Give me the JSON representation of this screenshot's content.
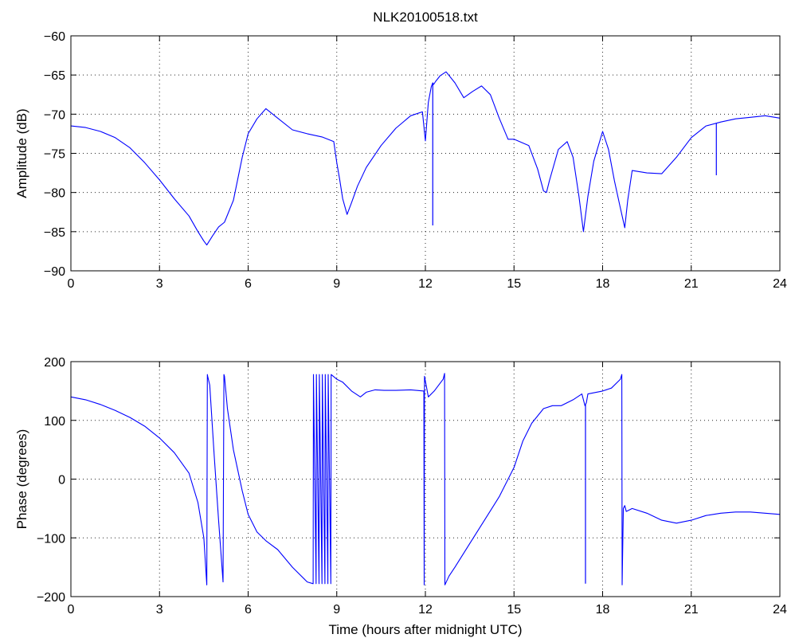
{
  "figure_title": "NLK20100518.txt",
  "colors": {
    "series": "#0000ff",
    "axes": "#000000",
    "background": "#ffffff"
  },
  "chart_data": [
    {
      "type": "line",
      "title": "NLK20100518.txt",
      "xlabel": "",
      "ylabel": "Amplitude (dB)",
      "xlim": [
        0,
        24
      ],
      "ylim": [
        -90,
        -60
      ],
      "xticks": [
        0,
        3,
        6,
        9,
        12,
        15,
        18,
        21,
        24
      ],
      "yticks": [
        -90,
        -85,
        -80,
        -75,
        -70,
        -65,
        -60
      ],
      "xtick_labels": [
        "0",
        "3",
        "6",
        "9",
        "12",
        "15",
        "18",
        "21",
        "24"
      ],
      "ytick_labels": [
        "−90",
        "−85",
        "−80",
        "−75",
        "−70",
        "−65",
        "−60"
      ],
      "grid": true,
      "series": [
        {
          "x": [
            0,
            0.5,
            1,
            1.5,
            2,
            2.5,
            3,
            3.5,
            4,
            4.3,
            4.5,
            4.6,
            4.8,
            5,
            5.2,
            5.5,
            5.8,
            6,
            6.3,
            6.6,
            7,
            7.5,
            8,
            8.5,
            8.9,
            9,
            9.1,
            9.2,
            9.35,
            9.5,
            9.7,
            10,
            10.5,
            11,
            11.5,
            11.9,
            12.0,
            12.1,
            12.2,
            12.25,
            12.28,
            12.35,
            12.5,
            12.7,
            13,
            13.3,
            13.6,
            13.9,
            14.2,
            14.5,
            14.8,
            15,
            15.5,
            15.8,
            16,
            16.1,
            16.2,
            16.5,
            16.8,
            17,
            17.2,
            17.35,
            17.5,
            17.7,
            18,
            18.2,
            18.4,
            18.6,
            18.75,
            18.85,
            19,
            19.5,
            20,
            20.5,
            21,
            21.5,
            22,
            22.5,
            23,
            23.5,
            24
          ],
          "y": [
            -71.5,
            -71.7,
            -72.2,
            -73,
            -74.3,
            -76.2,
            -78.4,
            -80.8,
            -83,
            -85,
            -86.2,
            -86.7,
            -85.5,
            -84.4,
            -83.8,
            -81,
            -75.5,
            -72.5,
            -70.6,
            -69.3,
            -70.5,
            -72,
            -72.5,
            -72.9,
            -73.5,
            -76.2,
            -78.4,
            -80.8,
            -82.8,
            -81.3,
            -79.2,
            -76.8,
            -74,
            -71.8,
            -70.2,
            -69.7,
            -73.4,
            -68.5,
            -66.5,
            -66,
            -66.2,
            -65.8,
            -65.1,
            -64.6,
            -66,
            -67.9,
            -67.1,
            -66.4,
            -67.5,
            -70.5,
            -73.2,
            -73.2,
            -74,
            -77,
            -79.8,
            -80,
            -78.5,
            -74.5,
            -73.5,
            -75.5,
            -80.5,
            -85,
            -80.5,
            -76,
            -72.2,
            -74.5,
            -78.5,
            -82,
            -84.5,
            -81,
            -77.2,
            -77.5,
            -77.6,
            -75.5,
            -73,
            -71.5,
            -71,
            -70.6,
            -70.4,
            -70.2,
            -70.5
          ],
          "spikes": [
            {
              "x": 12.25,
              "y": -84.2
            },
            {
              "x": 21.85,
              "y": -77.8
            }
          ]
        }
      ]
    },
    {
      "type": "line",
      "title": "",
      "xlabel": "Time (hours after midnight UTC)",
      "ylabel": "Phase (degrees)",
      "xlim": [
        0,
        24
      ],
      "ylim": [
        -200,
        200
      ],
      "xticks": [
        0,
        3,
        6,
        9,
        12,
        15,
        18,
        21,
        24
      ],
      "yticks": [
        -200,
        -100,
        0,
        100,
        200
      ],
      "xtick_labels": [
        "0",
        "3",
        "6",
        "9",
        "12",
        "15",
        "18",
        "21",
        "24"
      ],
      "ytick_labels": [
        "−200",
        "−100",
        "0",
        "100",
        "200"
      ],
      "grid": true,
      "series": [
        {
          "x": [
            0,
            0.5,
            1,
            1.5,
            2,
            2.5,
            3,
            3.5,
            4,
            4.3,
            4.5,
            4.6,
            4.62,
            4.63,
            4.7,
            4.85,
            5.0,
            5.15,
            5.18,
            5.2,
            5.3,
            5.5,
            5.8,
            6,
            6.3,
            6.6,
            7,
            7.5,
            8,
            8.2,
            8.21,
            8.3,
            8.31,
            8.4,
            8.41,
            8.5,
            8.51,
            8.6,
            8.61,
            8.7,
            8.71,
            8.8,
            8.81,
            9,
            9.2,
            9.5,
            9.8,
            10,
            10.3,
            10.6,
            11,
            11.5,
            11.95,
            11.96,
            11.97,
            12.1,
            12.3,
            12.6,
            12.65,
            12.66,
            12.8,
            13,
            13.5,
            14,
            14.5,
            15,
            15.3,
            15.6,
            16,
            16.3,
            16.6,
            17,
            17.3,
            17.4,
            17.45,
            17.5,
            18,
            18.3,
            18.6,
            18.65,
            18.66,
            18.7,
            18.75,
            18.8,
            19,
            19.5,
            20,
            20.5,
            21,
            21.5,
            22,
            22.5,
            23,
            23.5,
            24
          ],
          "y": [
            140,
            135,
            127,
            117,
            105,
            90,
            70,
            45,
            10,
            -40,
            -100,
            -180,
            178,
            175,
            160,
            40,
            -70,
            -175,
            178,
            175,
            120,
            50,
            -20,
            -60,
            -90,
            -105,
            -120,
            -150,
            -175,
            -178,
            178,
            -178,
            178,
            -178,
            178,
            -178,
            178,
            -178,
            178,
            -178,
            178,
            -178,
            178,
            170,
            165,
            150,
            140,
            148,
            152,
            151,
            151,
            152,
            150,
            -180,
            175,
            140,
            150,
            170,
            180,
            -180,
            -165,
            -150,
            -110,
            -70,
            -30,
            20,
            65,
            95,
            120,
            125,
            125,
            135,
            145,
            125,
            130,
            145,
            150,
            155,
            170,
            178,
            -180,
            -50,
            -45,
            -55,
            -50,
            -58,
            -70,
            -75,
            -70,
            -62,
            -58,
            -56,
            -56,
            -58,
            -60
          ],
          "spikes": [
            {
              "x": 17.42,
              "y": -178
            }
          ]
        }
      ]
    }
  ]
}
